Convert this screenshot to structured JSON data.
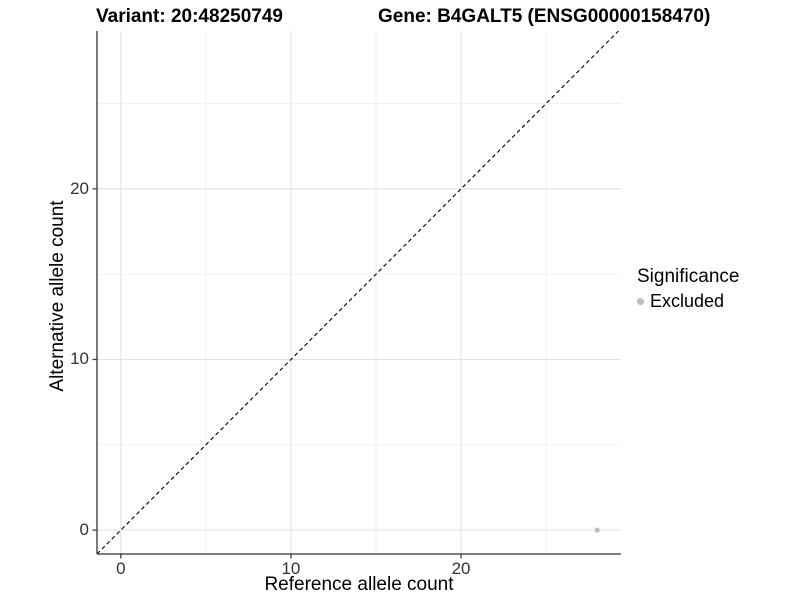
{
  "titles": {
    "variant": "Variant: 20:48250749",
    "gene": "Gene: B4GALT5 (ENSG00000158470)"
  },
  "chart_data": {
    "type": "scatter",
    "title_left": "Variant: 20:48250749",
    "title_right": "Gene: B4GALT5 (ENSG00000158470)",
    "xlabel": "Reference allele count",
    "ylabel": "Alternative allele count",
    "xlim": [
      -1.4,
      29.4
    ],
    "ylim": [
      -1.4,
      29.25
    ],
    "x_major_ticks": [
      0,
      10,
      20
    ],
    "x_tick_labels": [
      "0",
      "10",
      "20"
    ],
    "y_major_ticks": [
      0,
      10,
      20
    ],
    "y_tick_labels": [
      "0",
      "10",
      "20"
    ],
    "x_minor_ticks": [
      5,
      15,
      25
    ],
    "y_minor_ticks": [
      5,
      15,
      25
    ],
    "grid": true,
    "reference_line": {
      "type": "identity",
      "style": "dashed",
      "color": "#000000"
    },
    "series": [
      {
        "name": "Excluded",
        "color": "#bdbdbd",
        "points": [
          {
            "x": 28,
            "y": 0
          }
        ]
      }
    ],
    "legend": {
      "title": "Significance",
      "position": "right",
      "items": [
        {
          "label": "Excluded",
          "color": "#bdbdbd"
        }
      ]
    }
  },
  "colors": {
    "grid_major": "#e3e3e3",
    "grid_minor": "#f1f1f1",
    "axis_line": "#333333",
    "tick_mark": "#333333",
    "tick_label": "#333333",
    "point": "#bdbdbd",
    "background": "#ffffff"
  }
}
